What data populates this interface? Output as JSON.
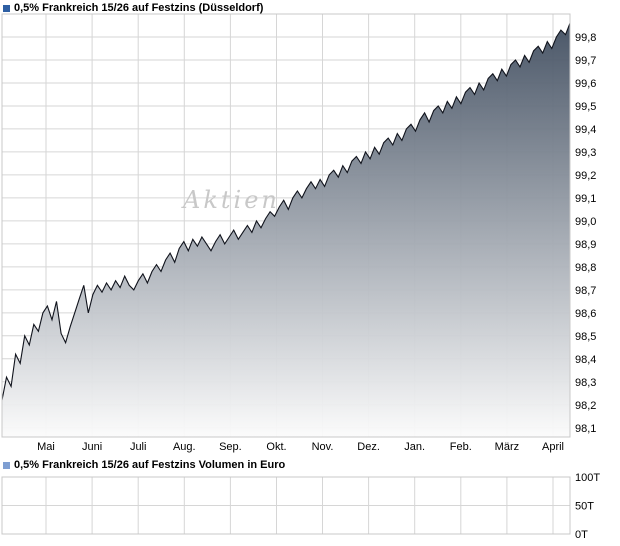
{
  "watermark": "Aktien",
  "chart_data": [
    {
      "type": "area",
      "title": "0,5% Frankreich 15/26 auf Festzins (Düsseldorf)",
      "legend_position": "top-left",
      "legend_marker_color": "#2e5fa3",
      "line_color": "#10131c",
      "area_top_color": "#414e60",
      "area_bottom_color": "#fbfbfb",
      "grid_color": "#d6d6d6",
      "grid": true,
      "ylim": [
        98.06,
        99.9
      ],
      "y_ticks": [
        "99,8",
        "99,7",
        "99,6",
        "99,5",
        "99,4",
        "99,3",
        "99,2",
        "99,1",
        "99,0",
        "98,9",
        "98,8",
        "98,7",
        "98,6",
        "98,5",
        "98,4",
        "98,3",
        "98,2",
        "98,1"
      ],
      "x_ticks": [
        "Mai",
        "Juni",
        "Juli",
        "Aug.",
        "Sep.",
        "Okt.",
        "Nov.",
        "Dez.",
        "Jan.",
        "Feb.",
        "März",
        "April"
      ],
      "values": [
        98.22,
        98.32,
        98.28,
        98.42,
        98.38,
        98.5,
        98.46,
        98.55,
        98.52,
        98.6,
        98.63,
        98.57,
        98.65,
        98.51,
        98.47,
        98.54,
        98.6,
        98.66,
        98.72,
        98.6,
        98.68,
        98.72,
        98.69,
        98.73,
        98.7,
        98.74,
        98.71,
        98.76,
        98.72,
        98.7,
        98.74,
        98.77,
        98.73,
        98.78,
        98.81,
        98.78,
        98.83,
        98.86,
        98.82,
        98.88,
        98.91,
        98.87,
        98.92,
        98.89,
        98.93,
        98.9,
        98.87,
        98.91,
        98.94,
        98.9,
        98.93,
        98.96,
        98.92,
        98.95,
        98.98,
        98.95,
        99.0,
        98.97,
        99.01,
        99.04,
        99.02,
        99.06,
        99.09,
        99.05,
        99.1,
        99.13,
        99.1,
        99.14,
        99.17,
        99.14,
        99.18,
        99.15,
        99.2,
        99.22,
        99.19,
        99.24,
        99.21,
        99.26,
        99.28,
        99.25,
        99.3,
        99.27,
        99.32,
        99.29,
        99.34,
        99.36,
        99.33,
        99.38,
        99.35,
        99.4,
        99.42,
        99.39,
        99.44,
        99.47,
        99.43,
        99.48,
        99.5,
        99.47,
        99.52,
        99.49,
        99.54,
        99.51,
        99.56,
        99.58,
        99.55,
        99.6,
        99.57,
        99.62,
        99.64,
        99.61,
        99.66,
        99.63,
        99.68,
        99.7,
        99.67,
        99.72,
        99.69,
        99.74,
        99.76,
        99.73,
        99.78,
        99.75,
        99.8,
        99.83,
        99.81,
        99.86
      ]
    },
    {
      "type": "bar",
      "title": "0,5% Frankreich 15/26 auf Festzins Volumen in Euro",
      "legend_position": "top-left",
      "legend_marker_color": "#7f9fd2",
      "grid_color": "#d6d6d6",
      "grid": true,
      "ylim": [
        0,
        100000
      ],
      "y_ticks": [
        "100T",
        "50T",
        "0T"
      ],
      "values": []
    }
  ]
}
